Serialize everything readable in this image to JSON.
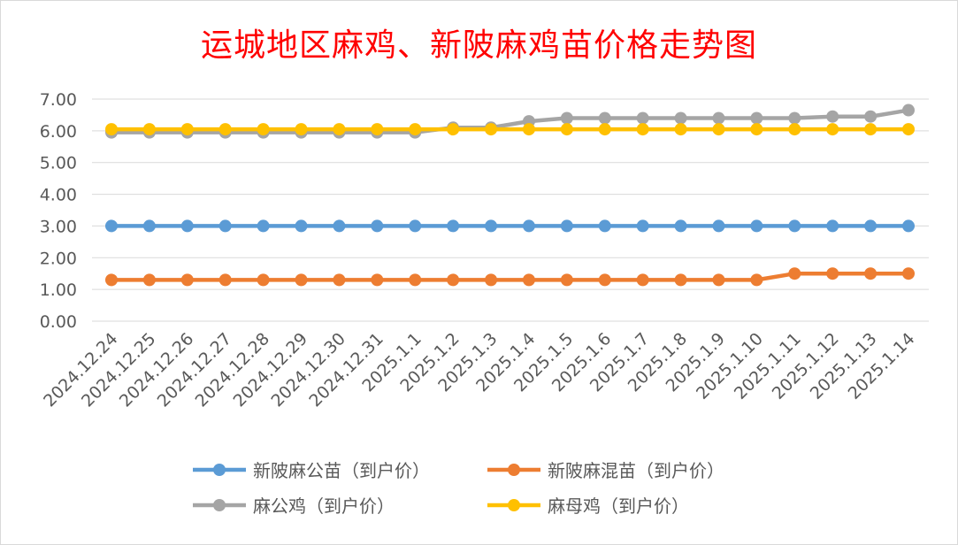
{
  "chart_data": {
    "type": "line",
    "title": "运城地区麻鸡、新陂麻鸡苗价格走势图",
    "categories": [
      "2024.12.24",
      "2024.12.25",
      "2024.12.26",
      "2024.12.27",
      "2024.12.28",
      "2024.12.29",
      "2024.12.30",
      "2024.12.31",
      "2025.1.1",
      "2025.1.2",
      "2025.1.3",
      "2025.1.4",
      "2025.1.5",
      "2025.1.6",
      "2025.1.7",
      "2025.1.8",
      "2025.1.9",
      "2025.1.10",
      "2025.1.11",
      "2025.1.12",
      "2025.1.13",
      "2025.1.14"
    ],
    "ylim": [
      0,
      7
    ],
    "yticks": [
      "0.00",
      "1.00",
      "2.00",
      "3.00",
      "4.00",
      "5.00",
      "6.00",
      "7.00"
    ],
    "grid": true,
    "legend_position": "bottom",
    "series": [
      {
        "name": "新陂麻公苗（到户价）",
        "color": "#5b9bd5",
        "values": [
          3.0,
          3.0,
          3.0,
          3.0,
          3.0,
          3.0,
          3.0,
          3.0,
          3.0,
          3.0,
          3.0,
          3.0,
          3.0,
          3.0,
          3.0,
          3.0,
          3.0,
          3.0,
          3.0,
          3.0,
          3.0,
          3.0
        ]
      },
      {
        "name": "新陂麻混苗（到户价）",
        "color": "#ed7d31",
        "values": [
          1.3,
          1.3,
          1.3,
          1.3,
          1.3,
          1.3,
          1.3,
          1.3,
          1.3,
          1.3,
          1.3,
          1.3,
          1.3,
          1.3,
          1.3,
          1.3,
          1.3,
          1.3,
          1.5,
          1.5,
          1.5,
          1.5
        ]
      },
      {
        "name": "麻公鸡（到户价）",
        "color": "#a5a5a5",
        "values": [
          5.95,
          5.95,
          5.95,
          5.95,
          5.95,
          5.95,
          5.95,
          5.95,
          5.95,
          6.1,
          6.1,
          6.3,
          6.4,
          6.4,
          6.4,
          6.4,
          6.4,
          6.4,
          6.4,
          6.45,
          6.45,
          6.65
        ]
      },
      {
        "name": "麻母鸡（到户价）",
        "color": "#ffc000",
        "values": [
          6.05,
          6.05,
          6.05,
          6.05,
          6.05,
          6.05,
          6.05,
          6.05,
          6.05,
          6.05,
          6.05,
          6.05,
          6.05,
          6.05,
          6.05,
          6.05,
          6.05,
          6.05,
          6.05,
          6.05,
          6.05,
          6.05
        ]
      }
    ]
  }
}
